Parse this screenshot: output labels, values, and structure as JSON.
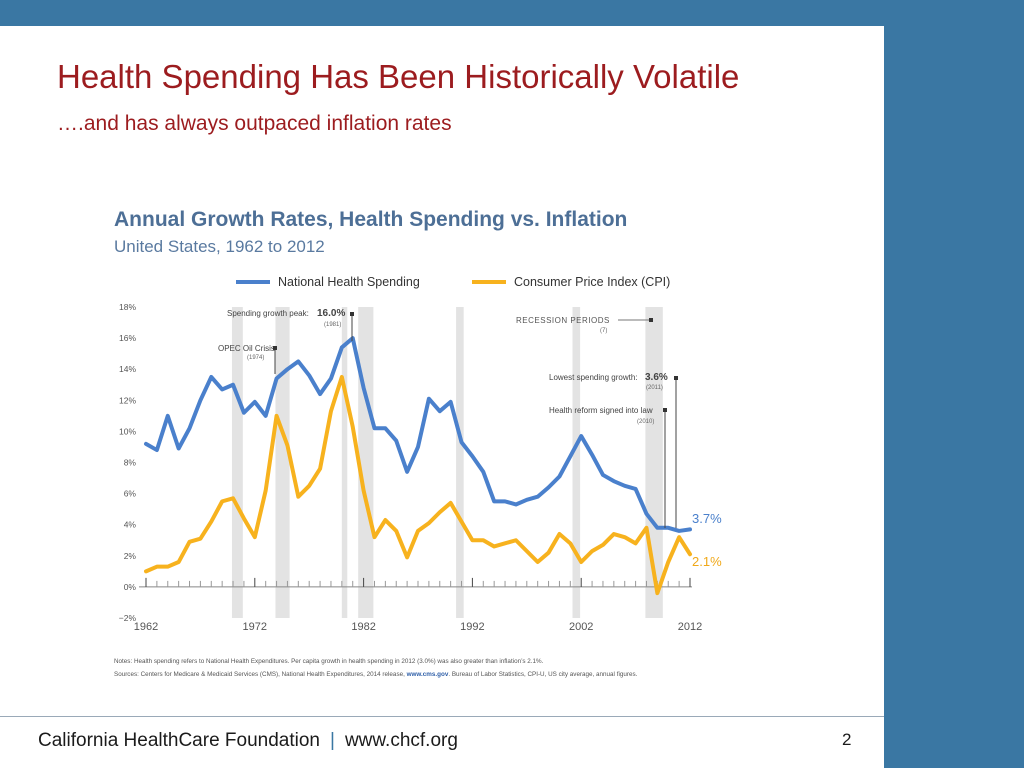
{
  "slide": {
    "title": "Health Spending Has Been Historically Volatile",
    "subtitle": "….and has always outpaced inflation rates",
    "footer_org": "California HealthCare Foundation",
    "footer_sep": "|",
    "footer_url": "www.chcf.org",
    "page_number": "2"
  },
  "colors": {
    "brand": "#3a77a3",
    "title": "#9c1c1f",
    "spending": "#4a80cc",
    "cpi": "#f7b21e",
    "recession": "#e3e3e3"
  },
  "chart_data": {
    "type": "line",
    "title": "Annual Growth Rates, Health Spending vs. Inflation",
    "subtitle": "United States, 1962 to 2012",
    "xlim": [
      1962,
      2012
    ],
    "ylim": [
      -2,
      18
    ],
    "x_ticks": [
      1962,
      1972,
      1982,
      1992,
      2002,
      2012
    ],
    "y_ticks": [
      "18%",
      "16%",
      "14%",
      "12%",
      "10%",
      "8%",
      "6%",
      "4%",
      "2%",
      "0%",
      "−2%"
    ],
    "y_tick_values": [
      18,
      16,
      14,
      12,
      10,
      8,
      6,
      4,
      2,
      0,
      -2
    ],
    "grid": false,
    "legend_position": "top",
    "x": [
      1962,
      1963,
      1964,
      1965,
      1966,
      1967,
      1968,
      1969,
      1970,
      1971,
      1972,
      1973,
      1974,
      1975,
      1976,
      1977,
      1978,
      1979,
      1980,
      1981,
      1982,
      1983,
      1984,
      1985,
      1986,
      1987,
      1988,
      1989,
      1990,
      1991,
      1992,
      1993,
      1994,
      1995,
      1996,
      1997,
      1998,
      1999,
      2000,
      2001,
      2002,
      2003,
      2004,
      2005,
      2006,
      2007,
      2008,
      2009,
      2010,
      2011,
      2012
    ],
    "series": [
      {
        "name": "National Health Spending",
        "label": "3.7%",
        "values": [
          9.2,
          8.8,
          11.0,
          8.9,
          10.2,
          12.0,
          13.5,
          12.7,
          13.0,
          11.2,
          11.9,
          11.0,
          13.4,
          14.0,
          14.5,
          13.6,
          12.4,
          13.4,
          15.4,
          16.0,
          12.8,
          10.2,
          10.2,
          9.4,
          7.4,
          9.0,
          12.1,
          11.3,
          11.9,
          9.3,
          8.4,
          7.4,
          5.5,
          5.5,
          5.3,
          5.6,
          5.8,
          6.4,
          7.1,
          8.4,
          9.7,
          8.5,
          7.2,
          6.8,
          6.5,
          6.3,
          4.7,
          3.8,
          3.8,
          3.6,
          3.7
        ]
      },
      {
        "name": "Consumer Price Index (CPI)",
        "label": "2.1%",
        "values": [
          1.0,
          1.3,
          1.3,
          1.6,
          2.9,
          3.1,
          4.2,
          5.5,
          5.7,
          4.4,
          3.2,
          6.2,
          11.0,
          9.1,
          5.8,
          6.5,
          7.6,
          11.3,
          13.5,
          10.3,
          6.2,
          3.2,
          4.3,
          3.6,
          1.9,
          3.6,
          4.1,
          4.8,
          5.4,
          4.2,
          3.0,
          3.0,
          2.6,
          2.8,
          3.0,
          2.3,
          1.6,
          2.2,
          3.4,
          2.8,
          1.6,
          2.3,
          2.7,
          3.4,
          3.2,
          2.8,
          3.8,
          -0.4,
          1.6,
          3.2,
          2.1
        ]
      }
    ],
    "recession_periods": [
      [
        1969.9,
        1970.9
      ],
      [
        1973.9,
        1975.2
      ],
      [
        1980.0,
        1980.5
      ],
      [
        1981.5,
        1982.9
      ],
      [
        1990.5,
        1991.2
      ],
      [
        2001.2,
        2001.9
      ],
      [
        2007.9,
        2009.5
      ]
    ],
    "annotations": [
      {
        "text": "Spending growth peak:",
        "value": "16.0%",
        "sub": "(1981)",
        "x": 1981,
        "y": 16.0
      },
      {
        "text": "OPEC Oil Crisis",
        "sub": "(1974)",
        "x": 1974,
        "y": 14.2
      },
      {
        "text": "RECESSION PERIODS",
        "sub": "(7)"
      },
      {
        "text": "Lowest spending growth:",
        "value": "3.6%",
        "sub": "(2011)",
        "x": 2011,
        "y": 13.5
      },
      {
        "text": "Health reform signed into law",
        "sub": "(2010)",
        "x": 2010,
        "y": 11.4
      }
    ],
    "notes": "Notes: Health spending refers to National Health Expenditures. Per capita growth in health spending in 2012 (3.0%) was also greater than inflation’s 2.1%.",
    "sources_prefix": "Sources: Centers for Medicare & Medicaid Services (CMS), National Health Expenditures, 2014 release, ",
    "sources_link": "www.cms.gov",
    "sources_suffix": ". Bureau of Labor Statistics, CPI-U, US city average, annual figures."
  }
}
